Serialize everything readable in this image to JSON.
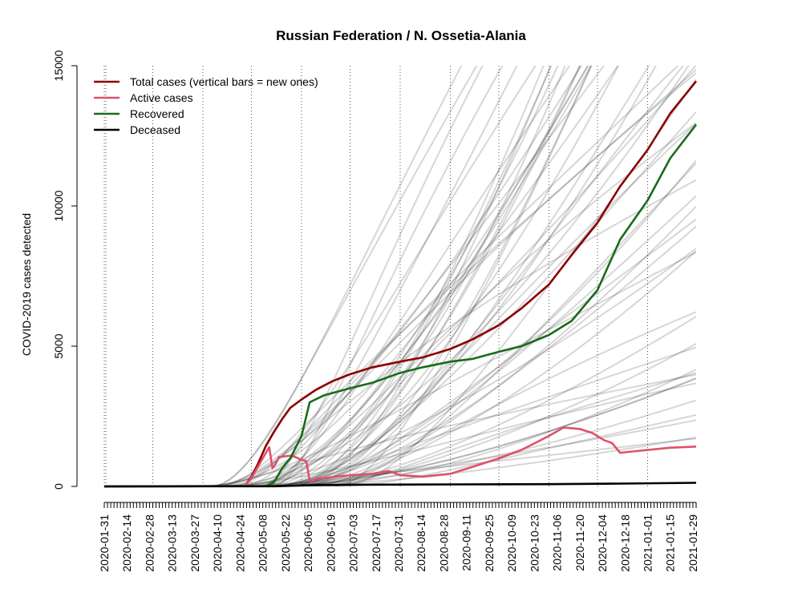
{
  "chart_data": {
    "type": "line",
    "title": "Russian Federation / N. Ossetia-Alania",
    "xlabel": "",
    "ylabel": "COVID-2019 cases detected",
    "xlim": [
      "2020-01-31",
      "2021-01-31"
    ],
    "ylim": [
      0,
      15000
    ],
    "y_ticks": [
      0,
      5000,
      10000,
      15000
    ],
    "x_tick_labels": [
      "2020-01-31",
      "2020-02-14",
      "2020-02-28",
      "2020-03-13",
      "2020-03-27",
      "2020-04-10",
      "2020-04-24",
      "2020-05-08",
      "2020-05-22",
      "2020-06-05",
      "2020-06-19",
      "2020-07-03",
      "2020-07-17",
      "2020-07-31",
      "2020-08-14",
      "2020-08-28",
      "2020-09-11",
      "2020-09-25",
      "2020-10-09",
      "2020-10-23",
      "2020-11-06",
      "2020-11-20",
      "2020-12-04",
      "2020-12-18",
      "2021-01-01",
      "2021-01-15",
      "2021-01-29"
    ],
    "vertical_gridlines": "dotted, monthly",
    "legend_position": "top-left",
    "series": [
      {
        "name": "Total cases (vertical bars = new ones)",
        "color": "#8b0000",
        "points": [
          [
            "2020-01-31",
            0
          ],
          [
            "2020-04-27",
            10
          ],
          [
            "2020-05-01",
            350
          ],
          [
            "2020-05-05",
            800
          ],
          [
            "2020-05-10",
            1450
          ],
          [
            "2020-05-15",
            1950
          ],
          [
            "2020-05-20",
            2400
          ],
          [
            "2020-05-25",
            2800
          ],
          [
            "2020-06-01",
            3100
          ],
          [
            "2020-06-10",
            3450
          ],
          [
            "2020-06-20",
            3750
          ],
          [
            "2020-07-01",
            4000
          ],
          [
            "2020-07-15",
            4250
          ],
          [
            "2020-08-01",
            4450
          ],
          [
            "2020-08-15",
            4600
          ],
          [
            "2020-09-01",
            4900
          ],
          [
            "2020-09-15",
            5250
          ],
          [
            "2020-10-01",
            5750
          ],
          [
            "2020-10-15",
            6350
          ],
          [
            "2020-11-01",
            7200
          ],
          [
            "2020-11-15",
            8250
          ],
          [
            "2020-12-01",
            9400
          ],
          [
            "2020-12-15",
            10700
          ],
          [
            "2021-01-01",
            12000
          ],
          [
            "2021-01-15",
            13300
          ],
          [
            "2021-01-31",
            14450
          ]
        ]
      },
      {
        "name": "Active cases",
        "color": "#e0506a",
        "points": [
          [
            "2020-01-31",
            0
          ],
          [
            "2020-04-27",
            10
          ],
          [
            "2020-05-01",
            300
          ],
          [
            "2020-05-05",
            700
          ],
          [
            "2020-05-09",
            1100
          ],
          [
            "2020-05-12",
            1400
          ],
          [
            "2020-05-14",
            650
          ],
          [
            "2020-05-16",
            800
          ],
          [
            "2020-05-18",
            1050
          ],
          [
            "2020-05-26",
            1100
          ],
          [
            "2020-06-01",
            950
          ],
          [
            "2020-06-04",
            900
          ],
          [
            "2020-06-06",
            200
          ],
          [
            "2020-06-15",
            300
          ],
          [
            "2020-07-01",
            400
          ],
          [
            "2020-07-15",
            450
          ],
          [
            "2020-07-25",
            550
          ],
          [
            "2020-08-01",
            400
          ],
          [
            "2020-08-15",
            350
          ],
          [
            "2020-09-01",
            450
          ],
          [
            "2020-09-15",
            700
          ],
          [
            "2020-10-01",
            1000
          ],
          [
            "2020-10-15",
            1300
          ],
          [
            "2020-11-01",
            1800
          ],
          [
            "2020-11-10",
            2100
          ],
          [
            "2020-11-20",
            2050
          ],
          [
            "2020-11-28",
            1900
          ],
          [
            "2020-12-05",
            1650
          ],
          [
            "2020-12-10",
            1550
          ],
          [
            "2020-12-15",
            1200
          ],
          [
            "2021-01-01",
            1300
          ],
          [
            "2021-01-15",
            1380
          ],
          [
            "2021-01-31",
            1420
          ]
        ]
      },
      {
        "name": "Recovered",
        "color": "#1a6b1a",
        "points": [
          [
            "2020-01-31",
            0
          ],
          [
            "2020-05-10",
            10
          ],
          [
            "2020-05-15",
            150
          ],
          [
            "2020-05-20",
            650
          ],
          [
            "2020-05-25",
            1000
          ],
          [
            "2020-06-01",
            1800
          ],
          [
            "2020-06-06",
            3000
          ],
          [
            "2020-06-15",
            3250
          ],
          [
            "2020-07-01",
            3500
          ],
          [
            "2020-07-15",
            3700
          ],
          [
            "2020-08-01",
            4050
          ],
          [
            "2020-08-15",
            4250
          ],
          [
            "2020-09-01",
            4450
          ],
          [
            "2020-09-15",
            4550
          ],
          [
            "2020-10-01",
            4800
          ],
          [
            "2020-10-15",
            5000
          ],
          [
            "2020-11-01",
            5400
          ],
          [
            "2020-11-15",
            5900
          ],
          [
            "2020-12-01",
            7000
          ],
          [
            "2020-12-15",
            8800
          ],
          [
            "2021-01-01",
            10200
          ],
          [
            "2021-01-15",
            11700
          ],
          [
            "2021-01-31",
            12900
          ]
        ]
      },
      {
        "name": "Deceased",
        "color": "#000000",
        "points": [
          [
            "2020-01-31",
            0
          ],
          [
            "2020-05-15",
            5
          ],
          [
            "2020-06-05",
            40
          ],
          [
            "2020-07-01",
            60
          ],
          [
            "2020-09-01",
            70
          ],
          [
            "2020-11-01",
            80
          ],
          [
            "2020-12-15",
            100
          ],
          [
            "2021-01-31",
            130
          ]
        ]
      }
    ]
  }
}
